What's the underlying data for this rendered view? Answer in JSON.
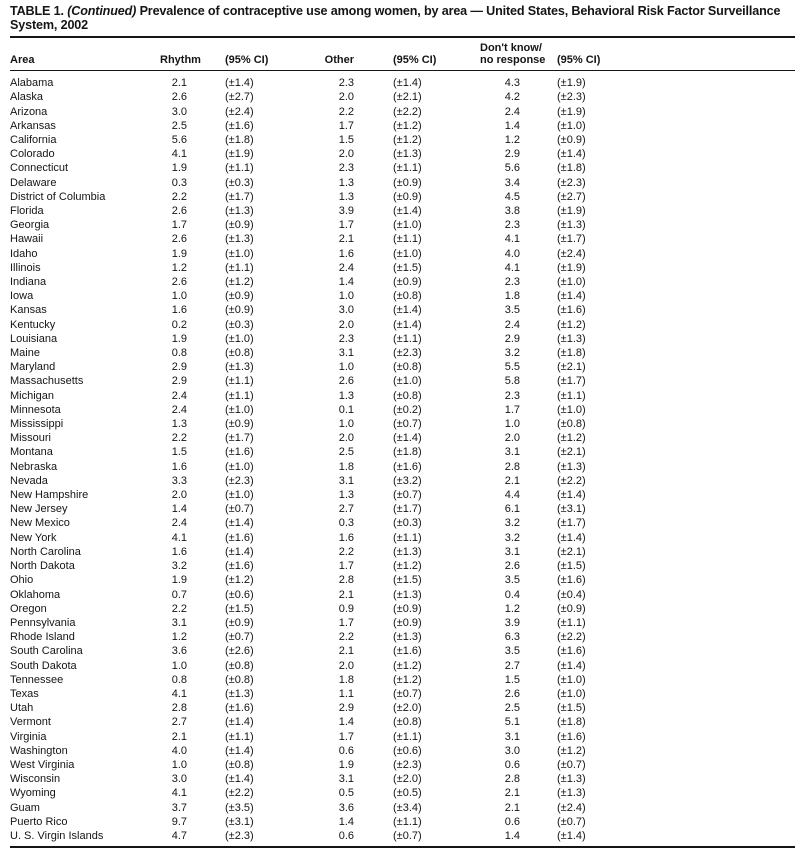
{
  "title": {
    "label": "TABLE 1.",
    "continued": "(Continued)",
    "text": "Prevalence of contraceptive use among women, by area — United States, Behavioral Risk Factor Surveillance System, 2002"
  },
  "table": {
    "headers": {
      "area": "Area",
      "rhythm": "Rhythm",
      "ci1": "(95% CI)",
      "other": "Other",
      "ci2": "(95% CI)",
      "dont_know_line1": "Don't know/",
      "dont_know_line2": "no response",
      "ci3": "(95% CI)"
    },
    "rows": [
      [
        "Alabama",
        "2.1",
        "(±1.4)",
        "2.3",
        "(±1.4)",
        "4.3",
        "(±1.9)"
      ],
      [
        "Alaska",
        "2.6",
        "(±2.7)",
        "2.0",
        "(±2.1)",
        "4.2",
        "(±2.3)"
      ],
      [
        "Arizona",
        "3.0",
        "(±2.4)",
        "2.2",
        "(±2.2)",
        "2.4",
        "(±1.9)"
      ],
      [
        "Arkansas",
        "2.5",
        "(±1.6)",
        "1.7",
        "(±1.2)",
        "1.4",
        "(±1.0)"
      ],
      [
        "California",
        "5.6",
        "(±1.8)",
        "1.5",
        "(±1.2)",
        "1.2",
        "(±0.9)"
      ],
      [
        "Colorado",
        "4.1",
        "(±1.9)",
        "2.0",
        "(±1.3)",
        "2.9",
        "(±1.4)"
      ],
      [
        "Connecticut",
        "1.9",
        "(±1.1)",
        "2.3",
        "(±1.1)",
        "5.6",
        "(±1.8)"
      ],
      [
        "Delaware",
        "0.3",
        "(±0.3)",
        "1.3",
        "(±0.9)",
        "3.4",
        "(±2.3)"
      ],
      [
        "District of Columbia",
        "2.2",
        "(±1.7)",
        "1.3",
        "(±0.9)",
        "4.5",
        "(±2.7)"
      ],
      [
        "Florida",
        "2.6",
        "(±1.3)",
        "3.9",
        "(±1.4)",
        "3.8",
        "(±1.9)"
      ],
      [
        "Georgia",
        "1.7",
        "(±0.9)",
        "1.7",
        "(±1.0)",
        "2.3",
        "(±1.3)"
      ],
      [
        "Hawaii",
        "2.6",
        "(±1.3)",
        "2.1",
        "(±1.1)",
        "4.1",
        "(±1.7)"
      ],
      [
        "Idaho",
        "1.9",
        "(±1.0)",
        "1.6",
        "(±1.0)",
        "4.0",
        "(±2.4)"
      ],
      [
        "Illinois",
        "1.2",
        "(±1.1)",
        "2.4",
        "(±1.5)",
        "4.1",
        "(±1.9)"
      ],
      [
        "Indiana",
        "2.6",
        "(±1.2)",
        "1.4",
        "(±0.9)",
        "2.3",
        "(±1.0)"
      ],
      [
        "Iowa",
        "1.0",
        "(±0.9)",
        "1.0",
        "(±0.8)",
        "1.8",
        "(±1.4)"
      ],
      [
        "Kansas",
        "1.6",
        "(±0.9)",
        "3.0",
        "(±1.4)",
        "3.5",
        "(±1.6)"
      ],
      [
        "Kentucky",
        "0.2",
        "(±0.3)",
        "2.0",
        "(±1.4)",
        "2.4",
        "(±1.2)"
      ],
      [
        "Louisiana",
        "1.9",
        "(±1.0)",
        "2.3",
        "(±1.1)",
        "2.9",
        "(±1.3)"
      ],
      [
        "Maine",
        "0.8",
        "(±0.8)",
        "3.1",
        "(±2.3)",
        "3.2",
        "(±1.8)"
      ],
      [
        "Maryland",
        "2.9",
        "(±1.3)",
        "1.0",
        "(±0.8)",
        "5.5",
        "(±2.1)"
      ],
      [
        "Massachusetts",
        "2.9",
        "(±1.1)",
        "2.6",
        "(±1.0)",
        "5.8",
        "(±1.7)"
      ],
      [
        "Michigan",
        "2.4",
        "(±1.1)",
        "1.3",
        "(±0.8)",
        "2.3",
        "(±1.1)"
      ],
      [
        "Minnesota",
        "2.4",
        "(±1.0)",
        "0.1",
        "(±0.2)",
        "1.7",
        "(±1.0)"
      ],
      [
        "Mississippi",
        "1.3",
        "(±0.9)",
        "1.0",
        "(±0.7)",
        "1.0",
        "(±0.8)"
      ],
      [
        "Missouri",
        "2.2",
        "(±1.7)",
        "2.0",
        "(±1.4)",
        "2.0",
        "(±1.2)"
      ],
      [
        "Montana",
        "1.5",
        "(±1.6)",
        "2.5",
        "(±1.8)",
        "3.1",
        "(±2.1)"
      ],
      [
        "Nebraska",
        "1.6",
        "(±1.0)",
        "1.8",
        "(±1.6)",
        "2.8",
        "(±1.3)"
      ],
      [
        "Nevada",
        "3.3",
        "(±2.3)",
        "3.1",
        "(±3.2)",
        "2.1",
        "(±2.2)"
      ],
      [
        "New Hampshire",
        "2.0",
        "(±1.0)",
        "1.3",
        "(±0.7)",
        "4.4",
        "(±1.4)"
      ],
      [
        "New Jersey",
        "1.4",
        "(±0.7)",
        "2.7",
        "(±1.7)",
        "6.1",
        "(±3.1)"
      ],
      [
        "New Mexico",
        "2.4",
        "(±1.4)",
        "0.3",
        "(±0.3)",
        "3.2",
        "(±1.7)"
      ],
      [
        "New York",
        "4.1",
        "(±1.6)",
        "1.6",
        "(±1.1)",
        "3.2",
        "(±1.4)"
      ],
      [
        "North Carolina",
        "1.6",
        "(±1.4)",
        "2.2",
        "(±1.3)",
        "3.1",
        "(±2.1)"
      ],
      [
        "North Dakota",
        "3.2",
        "(±1.6)",
        "1.7",
        "(±1.2)",
        "2.6",
        "(±1.5)"
      ],
      [
        "Ohio",
        "1.9",
        "(±1.2)",
        "2.8",
        "(±1.5)",
        "3.5",
        "(±1.6)"
      ],
      [
        "Oklahoma",
        "0.7",
        "(±0.6)",
        "2.1",
        "(±1.3)",
        "0.4",
        "(±0.4)"
      ],
      [
        "Oregon",
        "2.2",
        "(±1.5)",
        "0.9",
        "(±0.9)",
        "1.2",
        "(±0.9)"
      ],
      [
        "Pennsylvania",
        "3.1",
        "(±0.9)",
        "1.7",
        "(±0.9)",
        "3.9",
        "(±1.1)"
      ],
      [
        "Rhode Island",
        "1.2",
        "(±0.7)",
        "2.2",
        "(±1.3)",
        "6.3",
        "(±2.2)"
      ],
      [
        "South Carolina",
        "3.6",
        "(±2.6)",
        "2.1",
        "(±1.6)",
        "3.5",
        "(±1.6)"
      ],
      [
        "South Dakota",
        "1.0",
        "(±0.8)",
        "2.0",
        "(±1.2)",
        "2.7",
        "(±1.4)"
      ],
      [
        "Tennessee",
        "0.8",
        "(±0.8)",
        "1.8",
        "(±1.2)",
        "1.5",
        "(±1.0)"
      ],
      [
        "Texas",
        "4.1",
        "(±1.3)",
        "1.1",
        "(±0.7)",
        "2.6",
        "(±1.0)"
      ],
      [
        "Utah",
        "2.8",
        "(±1.6)",
        "2.9",
        "(±2.0)",
        "2.5",
        "(±1.5)"
      ],
      [
        "Vermont",
        "2.7",
        "(±1.4)",
        "1.4",
        "(±0.8)",
        "5.1",
        "(±1.8)"
      ],
      [
        "Virginia",
        "2.1",
        "(±1.1)",
        "1.7",
        "(±1.1)",
        "3.1",
        "(±1.6)"
      ],
      [
        "Washington",
        "4.0",
        "(±1.4)",
        "0.6",
        "(±0.6)",
        "3.0",
        "(±1.2)"
      ],
      [
        "West Virginia",
        "1.0",
        "(±0.8)",
        "1.9",
        "(±2.3)",
        "0.6",
        "(±0.7)"
      ],
      [
        "Wisconsin",
        "3.0",
        "(±1.4)",
        "3.1",
        "(±2.0)",
        "2.8",
        "(±1.3)"
      ],
      [
        "Wyoming",
        "4.1",
        "(±2.2)",
        "0.5",
        "(±0.5)",
        "2.1",
        "(±1.3)"
      ],
      [
        "Guam",
        "3.7",
        "(±3.5)",
        "3.6",
        "(±3.4)",
        "2.1",
        "(±2.4)"
      ],
      [
        "Puerto Rico",
        "9.7",
        "(±3.1)",
        "1.4",
        "(±1.1)",
        "0.6",
        "(±0.7)"
      ],
      [
        "U. S. Virgin Islands",
        "4.7",
        "(±2.3)",
        "0.6",
        "(±0.7)",
        "1.4",
        "(±1.4)"
      ]
    ]
  }
}
